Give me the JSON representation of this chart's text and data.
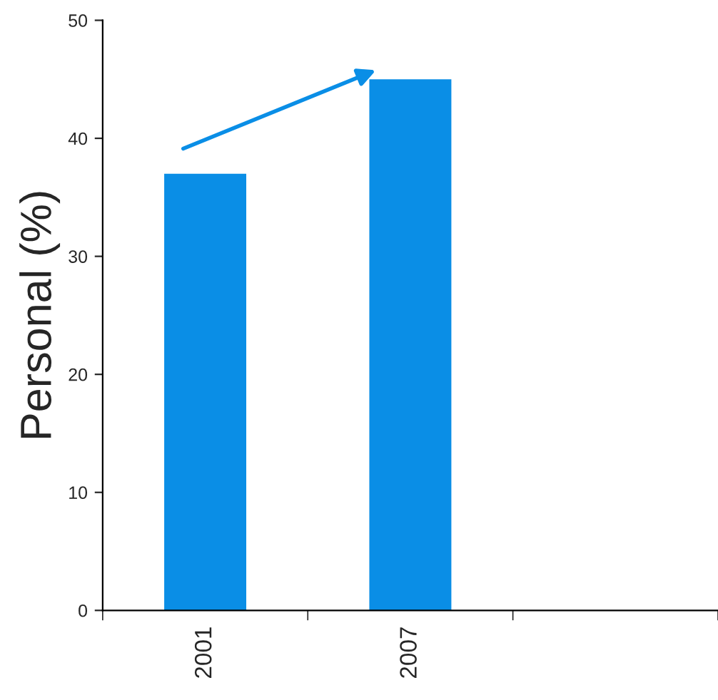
{
  "chart_data": {
    "type": "bar",
    "ylabel": "Personal (%)",
    "categories": [
      "2001",
      "2007",
      null
    ],
    "values": [
      37,
      45,
      null
    ],
    "color": "#0a8ee6",
    "ylim": [
      0,
      50
    ],
    "yticks": [
      0,
      10,
      20,
      30,
      40,
      50
    ],
    "grid": false,
    "legend": false
  }
}
